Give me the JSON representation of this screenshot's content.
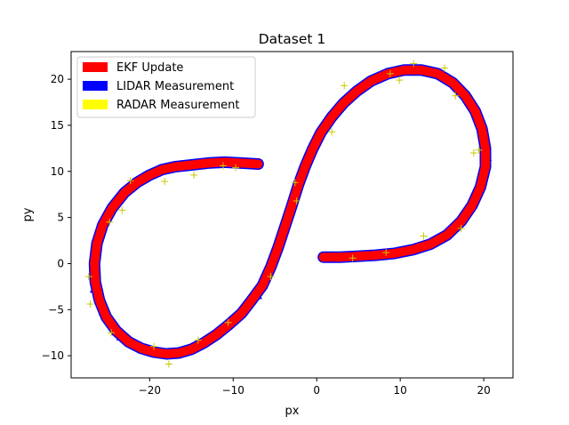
{
  "chart_data": {
    "type": "scatter",
    "title": "Dataset 1",
    "xlabel": "px",
    "ylabel": "py",
    "xlim": [
      -29.4,
      23.5
    ],
    "ylim": [
      -12.4,
      23.0
    ],
    "xticks": [
      -20,
      -10,
      0,
      10,
      20
    ],
    "xtick_labels": [
      "−20",
      "−10",
      "0",
      "10",
      "20"
    ],
    "yticks": [
      -10,
      -5,
      0,
      5,
      10,
      15,
      20
    ],
    "ytick_labels": [
      "−10",
      "−5",
      "0",
      "5",
      "10",
      "15",
      "20"
    ],
    "grid": false,
    "legend_position": "top-left",
    "series": [
      {
        "name": "EKF Update",
        "color": "#ff0000",
        "marker": "plus-thick",
        "points": [
          [
            -7,
            10.8
          ],
          [
            -9,
            10.9
          ],
          [
            -11,
            11.0
          ],
          [
            -13,
            10.9
          ],
          [
            -15,
            10.7
          ],
          [
            -17,
            10.5
          ],
          [
            -18.5,
            10.2
          ],
          [
            -20,
            9.6
          ],
          [
            -21.5,
            8.8
          ],
          [
            -23,
            7.7
          ],
          [
            -24.5,
            6.0
          ],
          [
            -25.6,
            4.2
          ],
          [
            -26.3,
            2.2
          ],
          [
            -26.6,
            0
          ],
          [
            -26.5,
            -2
          ],
          [
            -26,
            -4
          ],
          [
            -25.2,
            -5.8
          ],
          [
            -24,
            -7.3
          ],
          [
            -22.5,
            -8.5
          ],
          [
            -21,
            -9.2
          ],
          [
            -19.5,
            -9.6
          ],
          [
            -18,
            -9.8
          ],
          [
            -16.5,
            -9.7
          ],
          [
            -15,
            -9.3
          ],
          [
            -13.5,
            -8.6
          ],
          [
            -12,
            -7.7
          ],
          [
            -10.5,
            -6.6
          ],
          [
            -9,
            -5.4
          ],
          [
            -7.8,
            -4.0
          ],
          [
            -6.5,
            -2.4
          ],
          [
            -5.5,
            -0.4
          ],
          [
            -4.6,
            1.8
          ],
          [
            -3.8,
            4.0
          ],
          [
            -3.0,
            6.2
          ],
          [
            -2.2,
            8.5
          ],
          [
            -1.4,
            10.5
          ],
          [
            -0.5,
            12.4
          ],
          [
            0.5,
            14.2
          ],
          [
            1.8,
            15.9
          ],
          [
            3.2,
            17.4
          ],
          [
            4.8,
            18.7
          ],
          [
            6.5,
            19.8
          ],
          [
            8.5,
            20.6
          ],
          [
            10.5,
            21.0
          ],
          [
            12.5,
            21.0
          ],
          [
            14.5,
            20.6
          ],
          [
            16.3,
            19.6
          ],
          [
            17.8,
            18.2
          ],
          [
            19.0,
            16.5
          ],
          [
            19.8,
            14.6
          ],
          [
            20.2,
            12.5
          ],
          [
            20.2,
            10.5
          ],
          [
            19.6,
            8.3
          ],
          [
            18.6,
            6.3
          ],
          [
            17.3,
            4.6
          ],
          [
            15.6,
            3.1
          ],
          [
            13.6,
            2.1
          ],
          [
            11.5,
            1.5
          ],
          [
            9.3,
            1.1
          ],
          [
            7.0,
            0.9
          ],
          [
            4.8,
            0.8
          ],
          [
            2.8,
            0.7
          ],
          [
            0.8,
            0.7
          ]
        ]
      },
      {
        "name": "LIDAR Measurement",
        "color": "#0000ff",
        "marker": "triangle",
        "points": [
          [
            -8,
            11.0
          ],
          [
            -12,
            10.7
          ],
          [
            -16,
            10.4
          ],
          [
            -19,
            10.0
          ],
          [
            -22,
            8.5
          ],
          [
            -24,
            6.7
          ],
          [
            -25.9,
            3.5
          ],
          [
            -26.8,
            0.5
          ],
          [
            -26.7,
            -2.8
          ],
          [
            -25.6,
            -5.3
          ],
          [
            -23.5,
            -8.0
          ],
          [
            -20,
            -9.6
          ],
          [
            -17,
            -9.9
          ],
          [
            -13,
            -8.4
          ],
          [
            -9.5,
            -5.8
          ],
          [
            -7,
            -3.5
          ],
          [
            -5.3,
            0.5
          ],
          [
            -3.4,
            5.2
          ],
          [
            -1.8,
            9.7
          ],
          [
            0.2,
            13.6
          ],
          [
            2.6,
            16.8
          ],
          [
            5.8,
            19.4
          ],
          [
            9.5,
            20.9
          ],
          [
            13.5,
            20.9
          ],
          [
            17.0,
            19.0
          ],
          [
            19.4,
            15.6
          ],
          [
            20.5,
            11.5
          ],
          [
            20.0,
            9.2
          ],
          [
            18.2,
            5.6
          ],
          [
            14.6,
            2.6
          ],
          [
            10.4,
            1.3
          ],
          [
            6.0,
            0.8
          ],
          [
            2.0,
            0.6
          ]
        ]
      },
      {
        "name": "RADAR Measurement",
        "color": "#ffff00",
        "marker": "plus",
        "points": [
          [
            -18.2,
            8.9
          ],
          [
            -22.3,
            9.0
          ],
          [
            -23.3,
            5.8
          ],
          [
            -24.8,
            4.5
          ],
          [
            -27.3,
            -1.4
          ],
          [
            -27.1,
            -4.4
          ],
          [
            -24.6,
            -7.5
          ],
          [
            -17.7,
            -10.9
          ],
          [
            -19.5,
            -9.0
          ],
          [
            -14.2,
            -8.3
          ],
          [
            -10.6,
            -6.4
          ],
          [
            -5.5,
            -1.4
          ],
          [
            -2.4,
            6.8
          ],
          [
            1.8,
            14.3
          ],
          [
            3.3,
            19.3
          ],
          [
            8.8,
            20.6
          ],
          [
            9.9,
            19.9
          ],
          [
            11.6,
            21.7
          ],
          [
            15.3,
            21.2
          ],
          [
            16.6,
            18.2
          ],
          [
            19.4,
            12.3
          ],
          [
            18.8,
            12.0
          ],
          [
            17.3,
            3.8
          ],
          [
            12.8,
            3.0
          ],
          [
            8.3,
            1.2
          ],
          [
            4.3,
            0.6
          ],
          [
            -9.7,
            10.4
          ],
          [
            -14.7,
            9.6
          ],
          [
            -11.2,
            10.6
          ],
          [
            -2.6,
            8.8
          ]
        ]
      }
    ]
  }
}
